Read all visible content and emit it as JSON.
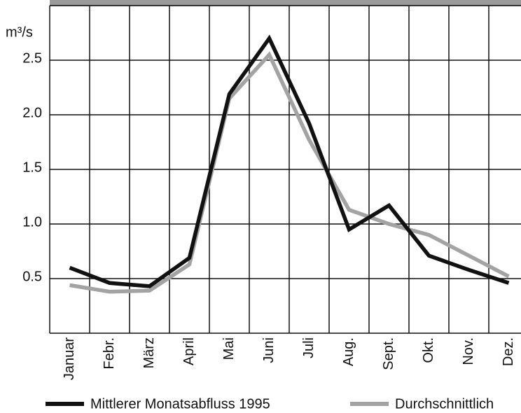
{
  "chart_data": {
    "type": "line",
    "y_label": "m³/s",
    "categories": [
      "Januar",
      "Febr.",
      "März",
      "April",
      "Mai",
      "Juni",
      "Juli",
      "Aug.",
      "Sept.",
      "Okt.",
      "Nov.",
      "Dez."
    ],
    "series": [
      {
        "name": "Mittlerer Monatsabfluss 1995",
        "color": "#111111",
        "values": [
          0.6,
          0.46,
          0.43,
          0.69,
          2.19,
          2.7,
          1.92,
          0.95,
          1.17,
          0.71,
          0.58,
          0.46
        ]
      },
      {
        "name": "Durchschnittlich",
        "color": "#a3a3a3",
        "values": [
          0.44,
          0.38,
          0.39,
          0.63,
          2.15,
          2.55,
          1.77,
          1.13,
          1.0,
          0.9,
          0.71,
          0.52
        ]
      }
    ],
    "ylim": [
      0,
      3.0
    ],
    "yticks": [
      0.5,
      {
        "value": 1.0,
        "label": "1.0"
      },
      1.5,
      {
        "value": 2.0,
        "label": "2.0"
      },
      2.5
    ],
    "grid": true
  }
}
